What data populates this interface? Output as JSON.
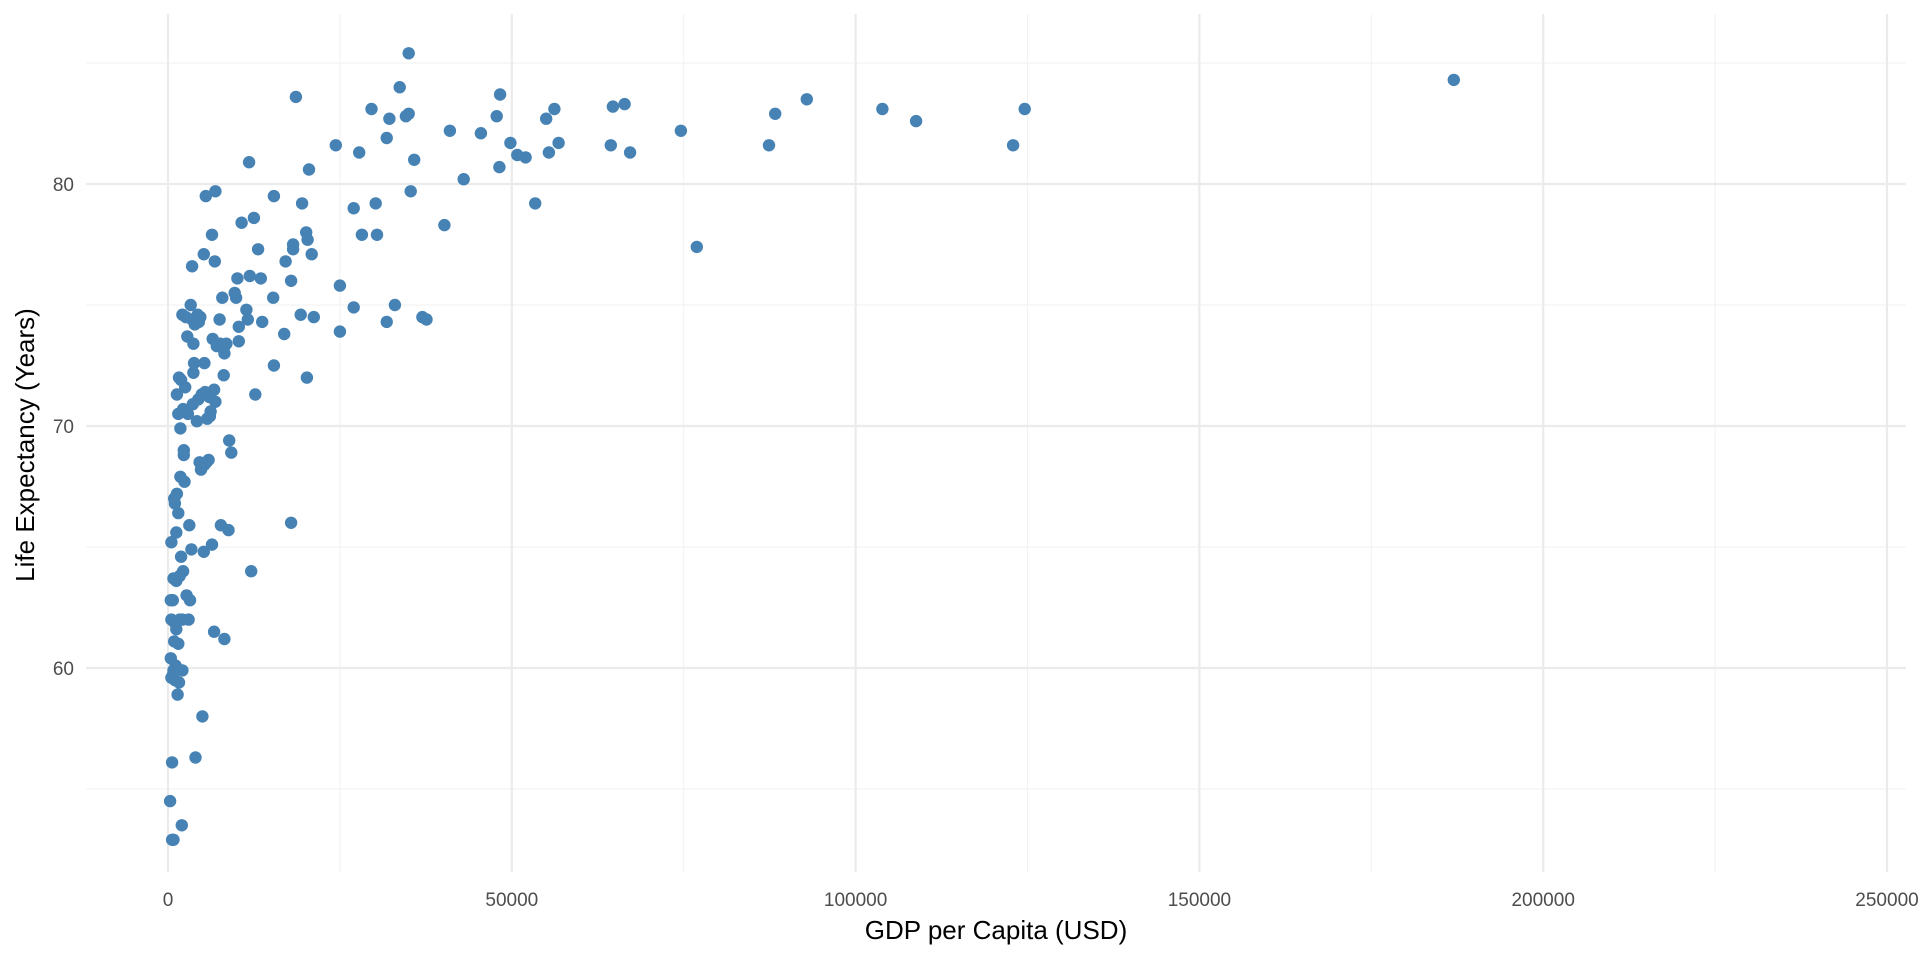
{
  "chart_data": {
    "type": "scatter",
    "title": "",
    "xlabel": "GDP per Capita (USD)",
    "ylabel": "Life Expectancy (Years)",
    "xlim": [
      -12000,
      255000
    ],
    "ylim": [
      52,
      86
    ],
    "x_ticks": [
      0,
      50000,
      100000,
      150000,
      200000,
      250000
    ],
    "x_tick_labels": [
      "0",
      "50000",
      "100000",
      "150000",
      "200000",
      "250000"
    ],
    "y_ticks": [
      60,
      70,
      80
    ],
    "y_tick_labels": [
      "60",
      "70",
      "80"
    ],
    "grid": true,
    "legend": "none",
    "point_color": "#4682b4",
    "points": [
      [
        187000,
        84.3
      ],
      [
        124600,
        83.1
      ],
      [
        122900,
        81.6
      ],
      [
        108800,
        82.6
      ],
      [
        103900,
        83.1
      ],
      [
        92900,
        83.5
      ],
      [
        88300,
        82.9
      ],
      [
        87400,
        81.6
      ],
      [
        76900,
        77.4
      ],
      [
        74600,
        82.2
      ],
      [
        67200,
        81.3
      ],
      [
        66400,
        83.3
      ],
      [
        64700,
        83.2
      ],
      [
        64400,
        81.6
      ],
      [
        56800,
        81.7
      ],
      [
        56200,
        83.1
      ],
      [
        55400,
        81.3
      ],
      [
        55000,
        82.7
      ],
      [
        53400,
        79.2
      ],
      [
        52000,
        81.1
      ],
      [
        50800,
        81.2
      ],
      [
        49800,
        81.7
      ],
      [
        48300,
        83.7
      ],
      [
        47800,
        82.8
      ],
      [
        48200,
        80.7
      ],
      [
        45500,
        82.1
      ],
      [
        43000,
        80.2
      ],
      [
        41000,
        82.2
      ],
      [
        40200,
        78.3
      ],
      [
        37600,
        74.4
      ],
      [
        37000,
        74.5
      ],
      [
        35800,
        81.0
      ],
      [
        35300,
        79.7
      ],
      [
        35000,
        85.4
      ],
      [
        35000,
        82.9
      ],
      [
        34600,
        82.8
      ],
      [
        33700,
        84.0
      ],
      [
        33000,
        75.0
      ],
      [
        32200,
        82.7
      ],
      [
        31800,
        81.9
      ],
      [
        31800,
        74.3
      ],
      [
        30200,
        79.2
      ],
      [
        30400,
        77.9
      ],
      [
        29600,
        83.1
      ],
      [
        28200,
        77.9
      ],
      [
        27800,
        81.3
      ],
      [
        27000,
        79.0
      ],
      [
        27000,
        74.9
      ],
      [
        25000,
        73.9
      ],
      [
        25000,
        75.8
      ],
      [
        24400,
        81.6
      ],
      [
        21200,
        74.5
      ],
      [
        20900,
        77.1
      ],
      [
        20500,
        80.6
      ],
      [
        20300,
        77.7
      ],
      [
        20100,
        78.0
      ],
      [
        20200,
        72.0
      ],
      [
        19500,
        79.2
      ],
      [
        19300,
        74.6
      ],
      [
        18600,
        83.6
      ],
      [
        18200,
        77.5
      ],
      [
        18200,
        77.3
      ],
      [
        17900,
        76.0
      ],
      [
        17900,
        66.0
      ],
      [
        17100,
        76.8
      ],
      [
        16900,
        73.8
      ],
      [
        15400,
        72.5
      ],
      [
        15400,
        79.5
      ],
      [
        15300,
        75.3
      ],
      [
        13700,
        74.3
      ],
      [
        13500,
        76.1
      ],
      [
        13100,
        77.3
      ],
      [
        12700,
        71.3
      ],
      [
        12500,
        78.6
      ],
      [
        12100,
        64.0
      ],
      [
        11900,
        76.2
      ],
      [
        11800,
        80.9
      ],
      [
        11600,
        74.4
      ],
      [
        11400,
        74.8
      ],
      [
        10700,
        78.4
      ],
      [
        10300,
        73.5
      ],
      [
        10300,
        74.1
      ],
      [
        10100,
        76.1
      ],
      [
        9900,
        75.3
      ],
      [
        9700,
        75.5
      ],
      [
        9200,
        68.9
      ],
      [
        8900,
        69.4
      ],
      [
        8800,
        65.7
      ],
      [
        8500,
        73.4
      ],
      [
        8200,
        61.2
      ],
      [
        8100,
        73.2
      ],
      [
        8100,
        72.1
      ],
      [
        8200,
        73.0
      ],
      [
        7900,
        75.3
      ],
      [
        7700,
        65.9
      ],
      [
        7600,
        73.4
      ],
      [
        7500,
        74.4
      ],
      [
        7100,
        73.3
      ],
      [
        6900,
        71.0
      ],
      [
        6900,
        79.7
      ],
      [
        6800,
        76.8
      ],
      [
        6700,
        61.5
      ],
      [
        6700,
        71.5
      ],
      [
        6500,
        73.6
      ],
      [
        6400,
        77.9
      ],
      [
        6400,
        65.1
      ],
      [
        6200,
        70.6
      ],
      [
        6100,
        70.4
      ],
      [
        6000,
        71.2
      ],
      [
        5900,
        68.6
      ],
      [
        5700,
        70.3
      ],
      [
        5600,
        68.5
      ],
      [
        5500,
        79.5
      ],
      [
        5400,
        71.4
      ],
      [
        5300,
        72.6
      ],
      [
        5300,
        68.4
      ],
      [
        5200,
        64.8
      ],
      [
        5200,
        77.1
      ],
      [
        5000,
        58.0
      ],
      [
        4900,
        71.3
      ],
      [
        4800,
        68.2
      ],
      [
        4700,
        74.5
      ],
      [
        4600,
        68.5
      ],
      [
        4500,
        74.3
      ],
      [
        4400,
        71.1
      ],
      [
        4300,
        74.6
      ],
      [
        4200,
        70.2
      ],
      [
        4000,
        56.3
      ],
      [
        3900,
        74.2
      ],
      [
        3800,
        72.6
      ],
      [
        3700,
        73.4
      ],
      [
        3700,
        72.2
      ],
      [
        3600,
        70.9
      ],
      [
        3500,
        76.6
      ],
      [
        3500,
        74.4
      ],
      [
        3400,
        64.9
      ],
      [
        3300,
        75.0
      ],
      [
        3200,
        62.8
      ],
      [
        3100,
        65.9
      ],
      [
        3000,
        62.0
      ],
      [
        2900,
        70.5
      ],
      [
        2800,
        73.7
      ],
      [
        2700,
        63.0
      ],
      [
        2600,
        74.5
      ],
      [
        2500,
        71.6
      ],
      [
        2400,
        67.7
      ],
      [
        2300,
        68.8
      ],
      [
        2300,
        69.0
      ],
      [
        2200,
        70.7
      ],
      [
        2200,
        64.0
      ],
      [
        2100,
        74.6
      ],
      [
        2100,
        62.0
      ],
      [
        2100,
        59.9
      ],
      [
        2000,
        53.5
      ],
      [
        1900,
        71.9
      ],
      [
        1900,
        64.6
      ],
      [
        1800,
        69.9
      ],
      [
        1800,
        67.9
      ],
      [
        1700,
        63.8
      ],
      [
        1700,
        62.0
      ],
      [
        1600,
        72.0
      ],
      [
        1600,
        59.4
      ],
      [
        1500,
        70.5
      ],
      [
        1500,
        66.4
      ],
      [
        1500,
        61.0
      ],
      [
        1400,
        58.9
      ],
      [
        1300,
        71.3
      ],
      [
        1300,
        67.2
      ],
      [
        1200,
        65.6
      ],
      [
        1200,
        63.6
      ],
      [
        1200,
        61.6
      ],
      [
        1100,
        60.1
      ],
      [
        1000,
        66.8
      ],
      [
        1000,
        59.5
      ],
      [
        900,
        67.0
      ],
      [
        900,
        61.9
      ],
      [
        900,
        61.1
      ],
      [
        800,
        63.7
      ],
      [
        800,
        59.9
      ],
      [
        800,
        52.9
      ],
      [
        700,
        62.8
      ],
      [
        700,
        59.7
      ],
      [
        600,
        56.1
      ],
      [
        600,
        52.9
      ],
      [
        500,
        65.2
      ],
      [
        500,
        62.0
      ],
      [
        500,
        59.6
      ],
      [
        400,
        62.8
      ],
      [
        400,
        60.4
      ],
      [
        300,
        54.5
      ]
    ]
  }
}
